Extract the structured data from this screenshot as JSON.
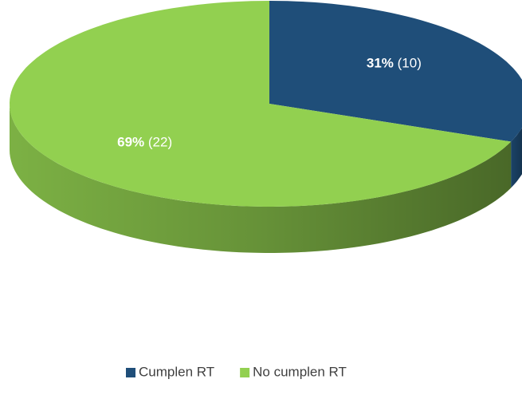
{
  "chart_data": {
    "type": "pie",
    "categories": [
      "Cumplen RT",
      "No cumplen RT"
    ],
    "values": [
      31,
      69
    ],
    "value_labels": [
      "31%",
      "69%"
    ],
    "count_labels": [
      "(10)",
      "(22)"
    ],
    "colors": [
      "#1f4e79",
      "#92d050"
    ],
    "legend": "bottom"
  }
}
